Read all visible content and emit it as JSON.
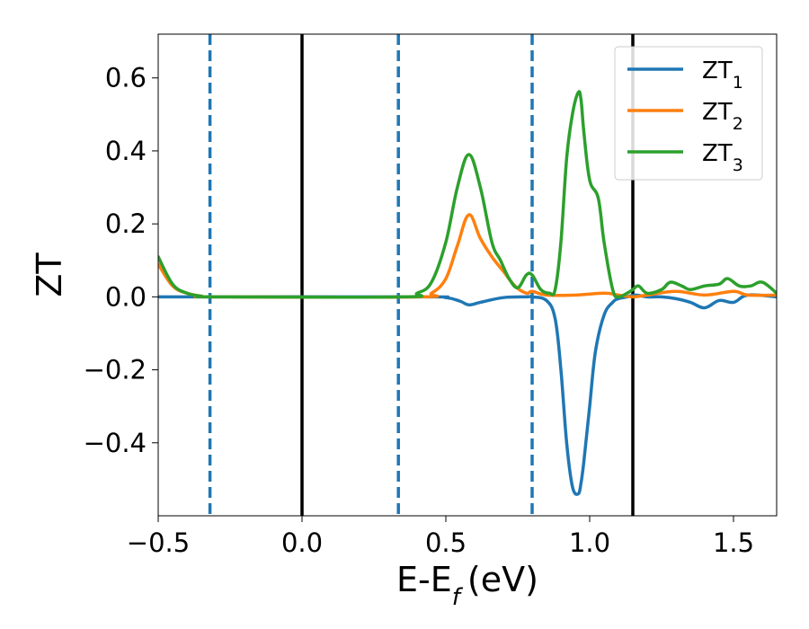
{
  "chart_data": {
    "type": "line",
    "xlabel": "E-E",
    "xlabel_sub": "f",
    "xlabel_unit": "(eV)",
    "ylabel": "ZT",
    "xlim": [
      -0.5,
      1.65
    ],
    "ylim": [
      -0.6,
      0.72
    ],
    "xticks": [
      -0.5,
      0.0,
      0.5,
      1.0,
      1.5
    ],
    "xtick_labels": [
      "−0.5",
      "0.0",
      "0.5",
      "1.0",
      "1.5"
    ],
    "yticks": [
      -0.4,
      -0.2,
      0.0,
      0.2,
      0.4,
      0.6
    ],
    "ytick_labels": [
      "−0.4",
      "−0.2",
      "0.0",
      "0.2",
      "0.4",
      "0.6"
    ],
    "grid": false,
    "legend_position": "top-right",
    "vlines_solid": [
      0.0,
      1.15
    ],
    "vlines_dashed": [
      -0.32,
      0.335,
      0.8
    ],
    "vline_dashed_color": "#1f77b4",
    "vline_solid_color": "#000000",
    "series": [
      {
        "name": "ZT",
        "name_sub": "1",
        "color": "#1f77b4",
        "x": [
          -0.5,
          0.4,
          0.5,
          0.55,
          0.58,
          0.62,
          0.7,
          0.78,
          0.8,
          0.85,
          0.88,
          0.9,
          0.92,
          0.94,
          0.96,
          0.97,
          0.98,
          1.0,
          1.02,
          1.05,
          1.08,
          1.1,
          1.13,
          1.16,
          1.2,
          1.25,
          1.3,
          1.35,
          1.4,
          1.45,
          1.5,
          1.55,
          1.65
        ],
        "y": [
          0.0,
          0.0,
          -0.002,
          -0.012,
          -0.022,
          -0.015,
          -0.002,
          0.0,
          0.0,
          -0.01,
          -0.06,
          -0.2,
          -0.4,
          -0.52,
          -0.54,
          -0.51,
          -0.45,
          -0.3,
          -0.15,
          -0.05,
          -0.015,
          -0.005,
          0.0,
          0.005,
          0.0,
          0.0,
          -0.005,
          -0.015,
          -0.03,
          -0.01,
          -0.015,
          0.005,
          0.0
        ]
      },
      {
        "name": "ZT",
        "name_sub": "2",
        "color": "#ff7f0e",
        "x": [
          -0.5,
          -0.45,
          -0.4,
          -0.35,
          -0.3,
          0.4,
          0.45,
          0.5,
          0.54,
          0.58,
          0.62,
          0.66,
          0.7,
          0.74,
          0.78,
          0.8,
          0.85,
          0.95,
          1.05,
          1.1,
          1.15,
          1.2,
          1.3,
          1.4,
          1.5,
          1.55,
          1.65
        ],
        "y": [
          0.09,
          0.03,
          0.01,
          0.002,
          0.0,
          0.0,
          0.01,
          0.05,
          0.14,
          0.225,
          0.16,
          0.11,
          0.07,
          0.03,
          0.01,
          0.015,
          0.005,
          0.005,
          0.01,
          0.005,
          0.0,
          0.005,
          0.015,
          0.005,
          0.015,
          0.005,
          0.005
        ]
      },
      {
        "name": "ZT",
        "name_sub": "3",
        "color": "#2ca02c",
        "x": [
          -0.5,
          -0.45,
          -0.4,
          -0.35,
          -0.3,
          0.35,
          0.4,
          0.45,
          0.5,
          0.54,
          0.58,
          0.62,
          0.66,
          0.69,
          0.72,
          0.75,
          0.78,
          0.8,
          0.83,
          0.86,
          0.88,
          0.9,
          0.92,
          0.94,
          0.96,
          0.97,
          0.98,
          1.0,
          1.03,
          1.05,
          1.08,
          1.1,
          1.13,
          1.15,
          1.17,
          1.2,
          1.25,
          1.28,
          1.32,
          1.35,
          1.4,
          1.45,
          1.48,
          1.52,
          1.56,
          1.6,
          1.65
        ],
        "y": [
          0.11,
          0.035,
          0.01,
          0.002,
          0.0,
          0.0,
          0.01,
          0.04,
          0.15,
          0.3,
          0.39,
          0.3,
          0.15,
          0.1,
          0.05,
          0.025,
          0.06,
          0.06,
          0.02,
          0.01,
          0.02,
          0.15,
          0.38,
          0.5,
          0.56,
          0.54,
          0.45,
          0.32,
          0.27,
          0.15,
          0.02,
          0.0,
          0.01,
          0.02,
          0.03,
          0.01,
          0.02,
          0.04,
          0.03,
          0.02,
          0.03,
          0.035,
          0.05,
          0.03,
          0.03,
          0.04,
          0.01
        ]
      }
    ]
  }
}
